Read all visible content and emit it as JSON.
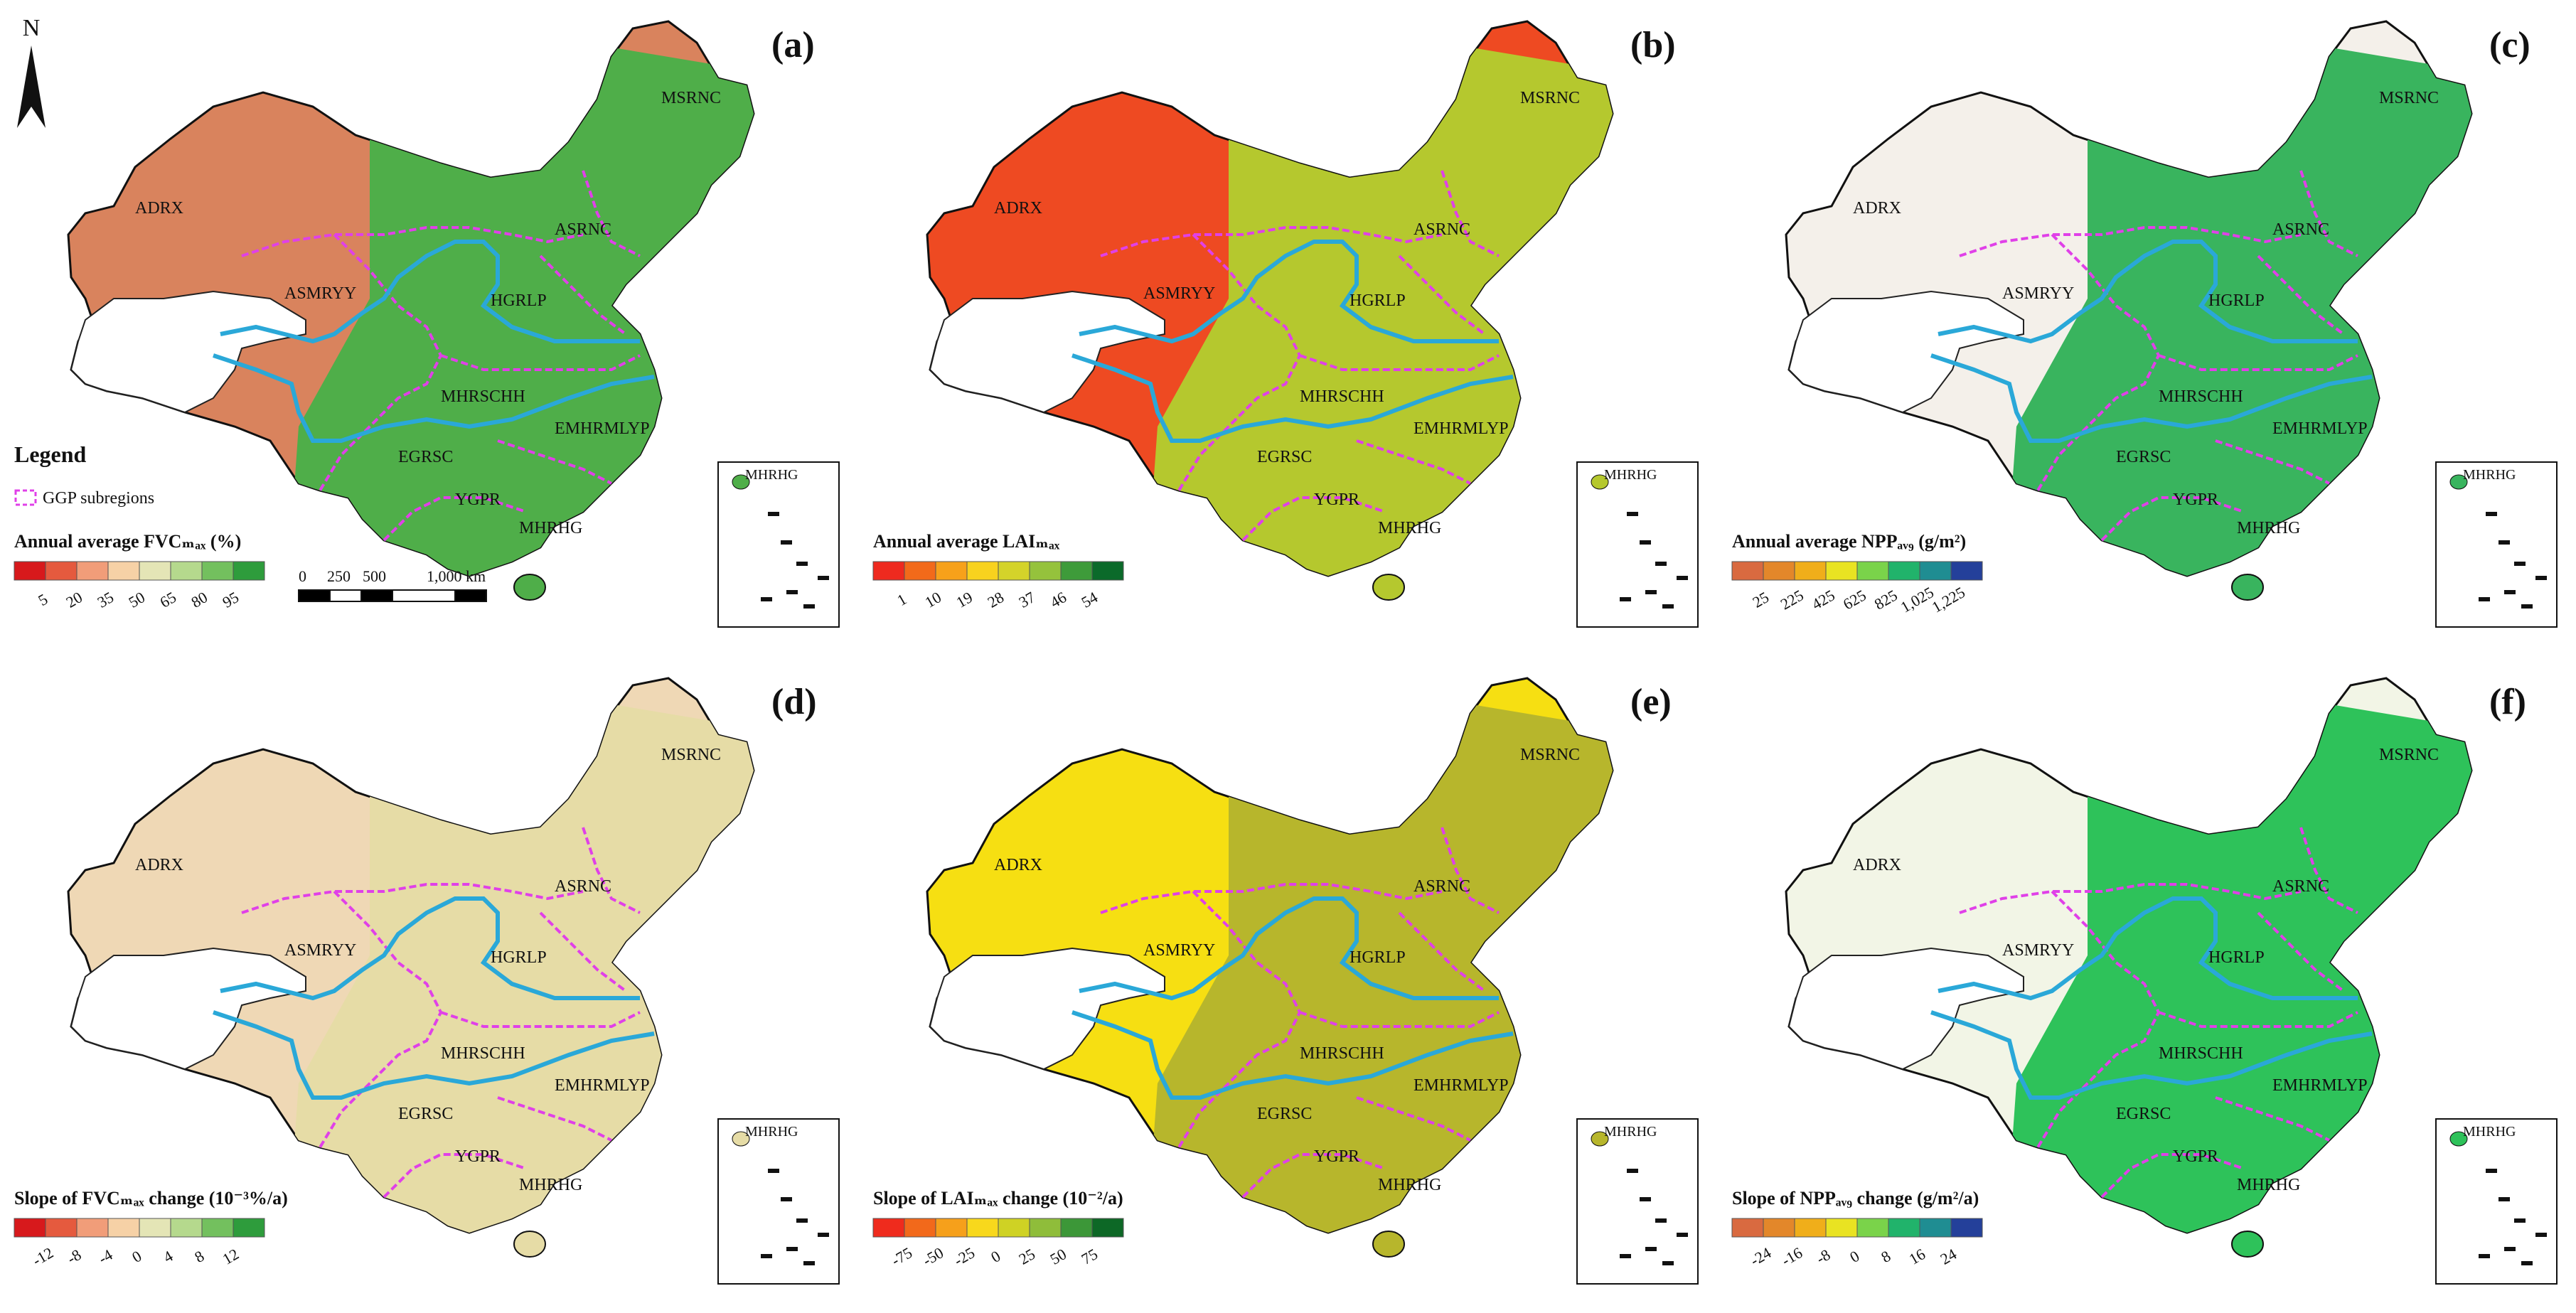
{
  "north_arrow": {
    "label": "N"
  },
  "legend": {
    "title": "Legend",
    "ggp_label": "GGP subregions",
    "scalebar_labels": [
      "0",
      "250",
      "500",
      "1,000 km"
    ]
  },
  "inset_label": "MHRHG",
  "region_labels": {
    "adrx": "ADRX",
    "asrnc": "ASRNC",
    "asmryy": "ASMRYY",
    "hgrlp": "HGRLP",
    "msrnc": "MSRNC",
    "mhrschh": "MHRSCHH",
    "emhrmlyp": "EMHRMLYP",
    "egrsc": "EGRSC",
    "ygpr": "YGPR",
    "mhrhg": "MHRHG"
  },
  "colors": {
    "river": "#2aa8d8",
    "ggp_boundary": "#e040e8",
    "scalebar_dark": "#000000",
    "scalebar_light": "#ffffff",
    "fvc_ramp": [
      "#d7191c",
      "#e55a3e",
      "#f19d79",
      "#f6d1a6",
      "#e4e5b6",
      "#b5d98d",
      "#73c05e",
      "#2e9c3c"
    ],
    "lai_ramp": [
      "#ee2a1f",
      "#f26a1a",
      "#f7a11a",
      "#f8d21e",
      "#d4d32a",
      "#95c23c",
      "#3e9b3a",
      "#0b6a2a"
    ],
    "npp_ramp": [
      "#d96a40",
      "#e3872a",
      "#f0ae1a",
      "#e9e322",
      "#7ad34a",
      "#21b36b",
      "#1f8d92",
      "#24409a"
    ],
    "fvc_slope_ramp": [
      "#d7191c",
      "#e55a3e",
      "#f19d79",
      "#f6d1a6",
      "#e4e5b6",
      "#b5d98d",
      "#73c05e",
      "#2e9c3c"
    ],
    "lai_slope_ramp": [
      "#ef2b1d",
      "#f2691b",
      "#f6a01b",
      "#f8d81c",
      "#cfd224",
      "#8fbd3a",
      "#3c9738",
      "#0d6826"
    ],
    "npp_slope_ramp": [
      "#d96a40",
      "#e3872a",
      "#f0ae1a",
      "#e9e322",
      "#7ad34a",
      "#21b36b",
      "#1f8d92",
      "#24409a"
    ]
  },
  "panels": [
    {
      "id": "a",
      "label": "(a)",
      "legend_title": "Annual average FVCₘₐₓ (%)",
      "ticks": [
        "5",
        "20",
        "35",
        "50",
        "65",
        "80",
        "95"
      ],
      "ramp": "fvc_ramp",
      "fill": "#4fae49",
      "land": "#d9835d"
    },
    {
      "id": "b",
      "label": "(b)",
      "legend_title": "Annual average LAIₘₐₓ",
      "ticks": [
        "1",
        "10",
        "19",
        "28",
        "37",
        "46",
        "54"
      ],
      "ramp": "lai_ramp",
      "fill": "#b5c82e",
      "land": "#ee4a22"
    },
    {
      "id": "c",
      "label": "(c)",
      "legend_title": "Annual average NPPₐᵥ₉ (g/m²)",
      "ticks": [
        "25",
        "225",
        "425",
        "625",
        "825",
        "1,025",
        "1,225"
      ],
      "ramp": "npp_ramp",
      "fill": "#39b45e",
      "land": "#f4f0ea"
    },
    {
      "id": "d",
      "label": "(d)",
      "legend_title": "Slope of FVCₘₐₓ change (10⁻³%/a)",
      "ticks": [
        "-12",
        "-8",
        "-4",
        "0",
        "4",
        "8",
        "12"
      ],
      "ramp": "fvc_slope_ramp",
      "fill": "#e6dca6",
      "land": "#efd8b5"
    },
    {
      "id": "e",
      "label": "(e)",
      "legend_title": "Slope of LAIₘₐₓ change (10⁻²/a)",
      "ticks": [
        "-75",
        "-50",
        "-25",
        "0",
        "25",
        "50",
        "75"
      ],
      "ramp": "lai_slope_ramp",
      "fill": "#b7b62c",
      "land": "#f6df12"
    },
    {
      "id": "f",
      "label": "(f)",
      "legend_title": "Slope of NPPₐᵥ₉ change (g/m²/a)",
      "ticks": [
        "-24",
        "-16",
        "-8",
        "0",
        "8",
        "16",
        "24"
      ],
      "ramp": "npp_slope_ramp",
      "fill": "#2ec25a",
      "land": "#f2f5e6"
    }
  ]
}
